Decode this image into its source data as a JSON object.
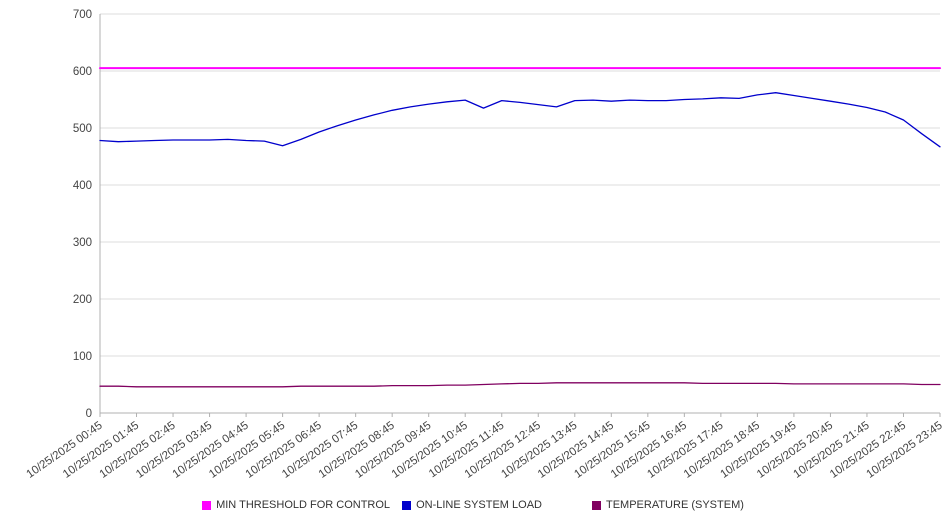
{
  "chart_data": {
    "type": "line",
    "title": "",
    "xlabel": "",
    "ylabel": "",
    "ylim": [
      0,
      700
    ],
    "yticks": [
      0,
      100,
      200,
      300,
      400,
      500,
      600,
      700
    ],
    "grid": true,
    "legend_position": "bottom",
    "x_labels": [
      "10/25/2025 00:45",
      "10/25/2025 01:45",
      "10/25/2025 02:45",
      "10/25/2025 03:45",
      "10/25/2025 04:45",
      "10/25/2025 05:45",
      "10/25/2025 06:45",
      "10/25/2025 07:45",
      "10/25/2025 08:45",
      "10/25/2025 09:45",
      "10/25/2025 10:45",
      "10/25/2025 11:45",
      "10/25/2025 12:45",
      "10/25/2025 13:45",
      "10/25/2025 14:45",
      "10/25/2025 15:45",
      "10/25/2025 16:45",
      "10/25/2025 17:45",
      "10/25/2025 18:45",
      "10/25/2025 19:45",
      "10/25/2025 20:45",
      "10/25/2025 21:45",
      "10/25/2025 22:45",
      "10/25/2025 23:45"
    ],
    "series": [
      {
        "name": "MIN THRESHOLD FOR CONTROL",
        "color": "#ff00ff",
        "stroke_width": 2,
        "values": [
          605,
          605
        ]
      },
      {
        "name": "ON-LINE SYSTEM LOAD",
        "color": "#0000cc",
        "stroke_width": 1.3,
        "values": [
          478,
          476,
          477,
          478,
          479,
          479,
          479,
          480,
          478,
          477,
          469,
          480,
          493,
          504,
          514,
          523,
          531,
          537,
          542,
          546,
          549,
          535,
          548,
          545,
          541,
          537,
          548,
          549,
          547,
          549,
          548,
          548,
          550,
          551,
          553,
          552,
          558,
          562,
          557,
          552,
          547,
          542,
          536,
          528,
          514,
          490,
          467
        ]
      },
      {
        "name": "TEMPERATURE (SYSTEM)",
        "color": "#800060",
        "stroke_width": 1.3,
        "values": [
          47,
          47,
          46,
          46,
          46,
          46,
          46,
          46,
          46,
          46,
          46,
          47,
          47,
          47,
          47,
          47,
          48,
          48,
          48,
          49,
          49,
          50,
          51,
          52,
          52,
          53,
          53,
          53,
          53,
          53,
          53,
          53,
          53,
          52,
          52,
          52,
          52,
          52,
          51,
          51,
          51,
          51,
          51,
          51,
          51,
          50,
          50
        ]
      }
    ]
  }
}
